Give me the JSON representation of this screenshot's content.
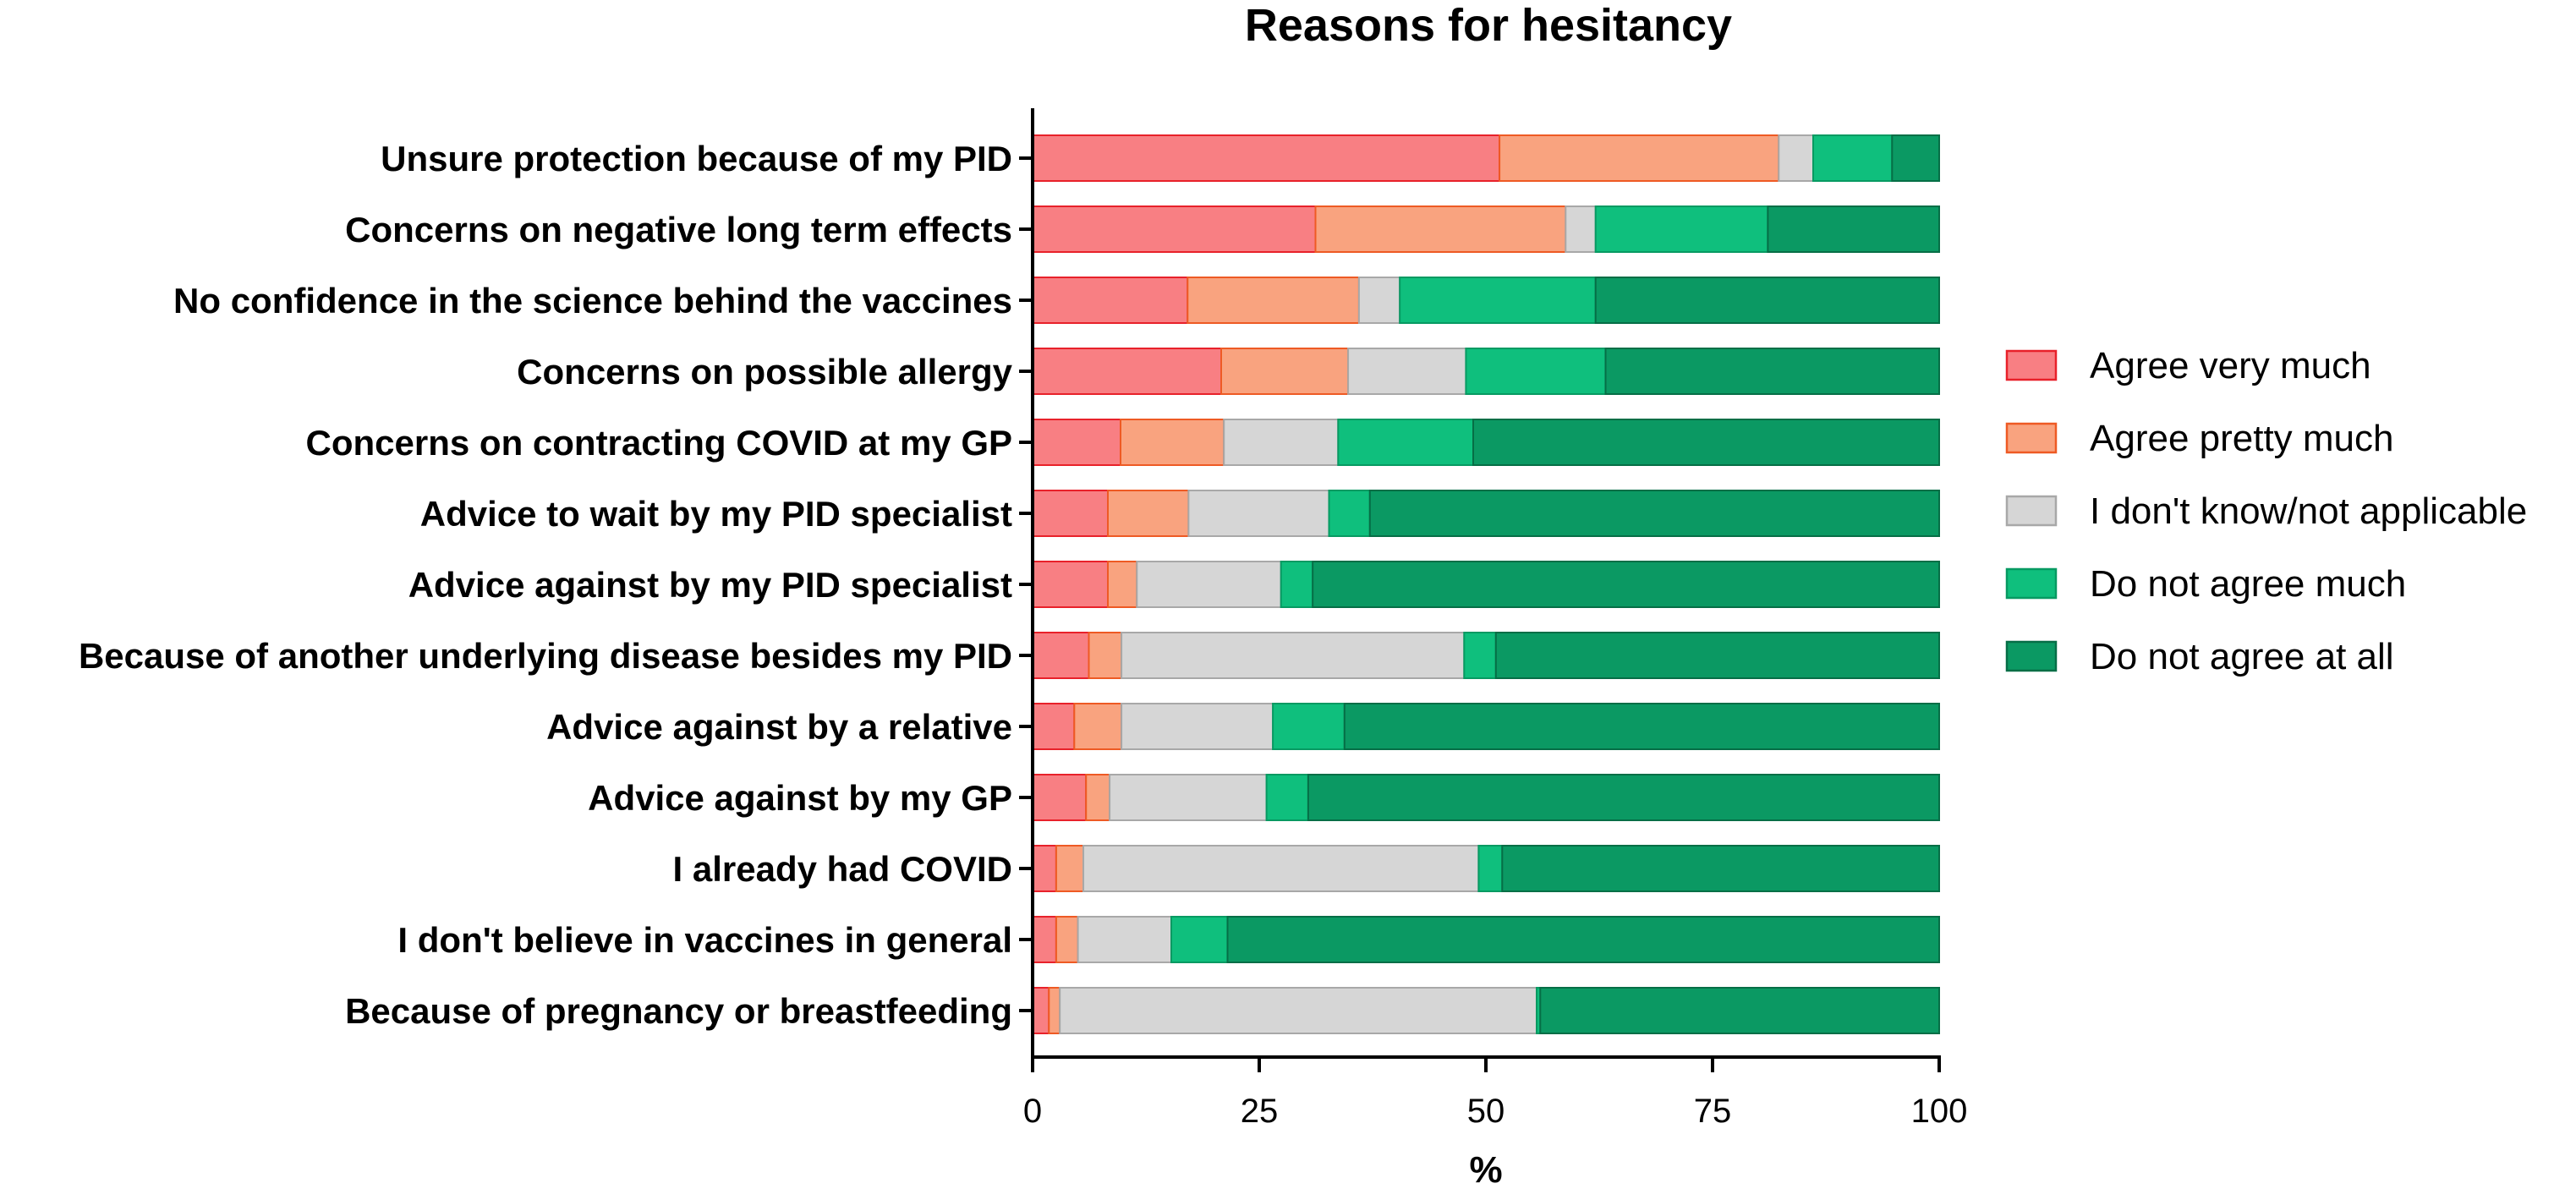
{
  "chart_data": {
    "type": "bar",
    "stacked": true,
    "orientation": "horizontal",
    "title": "Reasons for hesitancy",
    "xlabel": "%",
    "ylabel": "",
    "xlim": [
      0,
      100
    ],
    "xticks": [
      "0",
      "25",
      "50",
      "75",
      "100"
    ],
    "legend_position": "right",
    "categories": [
      "Unsure protection because of my PID",
      "Concerns on negative long term effects",
      "No confidence in the science behind the vaccines",
      "Concerns on possible allergy",
      "Concerns on contracting COVID at my GP",
      "Advice to wait by my PID specialist",
      "Advice against by my PID specialist",
      "Because of another underlying disease besides my PID",
      "Advice against by a relative",
      "Advice against by my GP",
      "I already had COVID",
      "I don't believe in vaccines in general",
      "Because of pregnancy or breastfeeding"
    ],
    "series": [
      {
        "name": "Agree very much",
        "fill": "#f87f83",
        "stroke": "#e8212a",
        "values": [
          51.5,
          31.2,
          17.1,
          20.8,
          9.7,
          8.3,
          8.3,
          6.2,
          4.6,
          5.9,
          2.6,
          2.6,
          1.8
        ]
      },
      {
        "name": "Agree pretty much",
        "fill": "#f9a37f",
        "stroke": "#ee5a24",
        "values": [
          30.8,
          27.6,
          18.9,
          14.0,
          11.4,
          8.9,
          3.2,
          3.6,
          5.2,
          2.6,
          3.0,
          2.4,
          1.2
        ]
      },
      {
        "name": "I don't know/not applicable",
        "fill": "#d6d6d6",
        "stroke": "#a8a8a8",
        "values": [
          3.8,
          3.3,
          4.5,
          13.0,
          12.6,
          15.5,
          15.9,
          37.8,
          16.7,
          17.3,
          43.6,
          10.3,
          52.6
        ]
      },
      {
        "name": "Do not agree much",
        "fill": "#0fbf7d",
        "stroke": "#079a62",
        "values": [
          8.7,
          19.0,
          21.6,
          15.4,
          14.9,
          4.5,
          3.5,
          3.5,
          7.9,
          4.6,
          2.6,
          6.2,
          0.4
        ]
      },
      {
        "name": "Do not agree at all",
        "fill": "#0b9963",
        "stroke": "#066e46",
        "values": [
          5.2,
          18.9,
          37.9,
          36.8,
          51.4,
          62.8,
          69.1,
          48.9,
          65.6,
          69.6,
          48.2,
          78.5,
          44.0
        ]
      }
    ]
  }
}
